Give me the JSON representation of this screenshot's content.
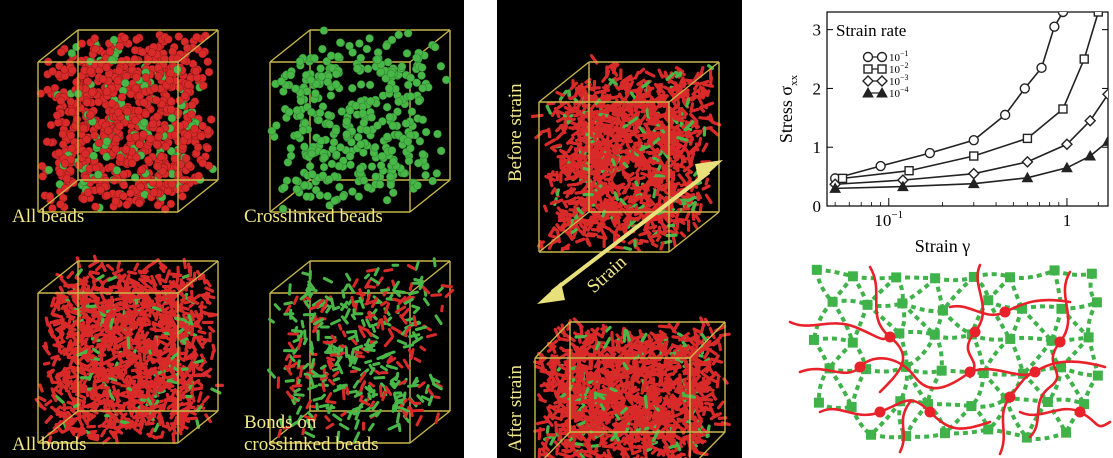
{
  "figure_panels": {
    "grid": {
      "cells": [
        {
          "label": "All beads",
          "kind": "beads-mixed"
        },
        {
          "label": "Crosslinked beads",
          "kind": "beads-green"
        },
        {
          "label": "All bonds",
          "kind": "bonds-red"
        },
        {
          "label_line1": "Bonds on",
          "label_line2": "crosslinked beads",
          "kind": "bonds-sparse"
        }
      ]
    },
    "strain_panel": {
      "before_label": "Before strain",
      "after_label": "After strain",
      "arrow_label": "Strain"
    },
    "network_colors": {
      "chain": "#e8222a",
      "crosslink": "#3fb34a"
    }
  },
  "colors": {
    "bead_red": "#d92a2a",
    "bead_green": "#49b648",
    "box_edge": "#c8b84a",
    "label": "#f3e88a"
  },
  "chart_data": {
    "type": "line",
    "xlabel": "Strain γ",
    "ylabel": "Stress σ",
    "ylabel_sub": "xx",
    "xscale": "log",
    "xlim": [
      0.045,
      1.7
    ],
    "ylim": [
      0,
      3.3
    ],
    "xticks": [
      {
        "value": 0.1,
        "label": "10",
        "exp": "−1"
      },
      {
        "value": 1,
        "label": "1"
      }
    ],
    "yticks": [
      0,
      1,
      2,
      3
    ],
    "legend": {
      "title": "Strain rate",
      "position": "top-left"
    },
    "series": [
      {
        "name": "10",
        "exp": "−1",
        "marker": "circle",
        "points": [
          [
            0.05,
            0.47
          ],
          [
            0.09,
            0.68
          ],
          [
            0.17,
            0.9
          ],
          [
            0.3,
            1.12
          ],
          [
            0.45,
            1.55
          ],
          [
            0.58,
            2.0
          ],
          [
            0.72,
            2.35
          ],
          [
            0.85,
            3.05
          ],
          [
            0.95,
            3.3
          ]
        ]
      },
      {
        "name": "10",
        "exp": "−2",
        "marker": "square",
        "points": [
          [
            0.055,
            0.47
          ],
          [
            0.13,
            0.6
          ],
          [
            0.3,
            0.85
          ],
          [
            0.6,
            1.15
          ],
          [
            0.95,
            1.65
          ],
          [
            1.25,
            2.5
          ],
          [
            1.5,
            3.3
          ]
        ]
      },
      {
        "name": "10",
        "exp": "−3",
        "marker": "diamond",
        "points": [
          [
            0.05,
            0.37
          ],
          [
            0.12,
            0.44
          ],
          [
            0.3,
            0.55
          ],
          [
            0.6,
            0.75
          ],
          [
            1.0,
            1.05
          ],
          [
            1.35,
            1.45
          ],
          [
            1.7,
            1.9
          ]
        ]
      },
      {
        "name": "10",
        "exp": "−4",
        "marker": "triangle",
        "points": [
          [
            0.05,
            0.3
          ],
          [
            0.12,
            0.33
          ],
          [
            0.3,
            0.38
          ],
          [
            0.6,
            0.48
          ],
          [
            1.0,
            0.65
          ],
          [
            1.35,
            0.85
          ],
          [
            1.7,
            1.1
          ]
        ]
      }
    ]
  }
}
